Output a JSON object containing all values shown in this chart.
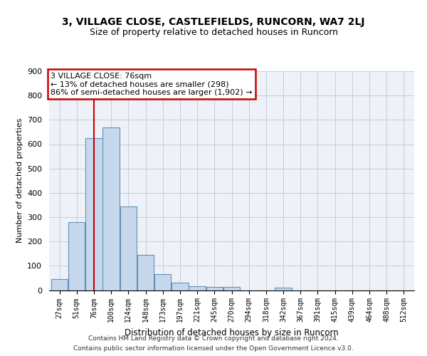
{
  "title": "3, VILLAGE CLOSE, CASTLEFIELDS, RUNCORN, WA7 2LJ",
  "subtitle": "Size of property relative to detached houses in Runcorn",
  "xlabel": "Distribution of detached houses by size in Runcorn",
  "ylabel": "Number of detached properties",
  "bar_color": "#c8d8ec",
  "bar_edge_color": "#6090b8",
  "annotation_text": "3 VILLAGE CLOSE: 76sqm\n← 13% of detached houses are smaller (298)\n86% of semi-detached houses are larger (1,902) →",
  "highlight_idx": 2,
  "categories": [
    "27sqm",
    "51sqm",
    "76sqm",
    "100sqm",
    "124sqm",
    "148sqm",
    "173sqm",
    "197sqm",
    "221sqm",
    "245sqm",
    "270sqm",
    "294sqm",
    "318sqm",
    "342sqm",
    "367sqm",
    "391sqm",
    "415sqm",
    "439sqm",
    "464sqm",
    "488sqm",
    "512sqm"
  ],
  "bar_heights": [
    44,
    280,
    625,
    670,
    345,
    145,
    67,
    30,
    15,
    12,
    12,
    0,
    0,
    10,
    0,
    0,
    0,
    0,
    0,
    0,
    0
  ],
  "ylim": [
    0,
    900
  ],
  "yticks": [
    0,
    100,
    200,
    300,
    400,
    500,
    600,
    700,
    800,
    900
  ],
  "footer_line1": "Contains HM Land Registry data © Crown copyright and database right 2024.",
  "footer_line2": "Contains public sector information licensed under the Open Government Licence v3.0.",
  "bg_color": "#eef2f8",
  "grid_color": "#c4ccd8"
}
